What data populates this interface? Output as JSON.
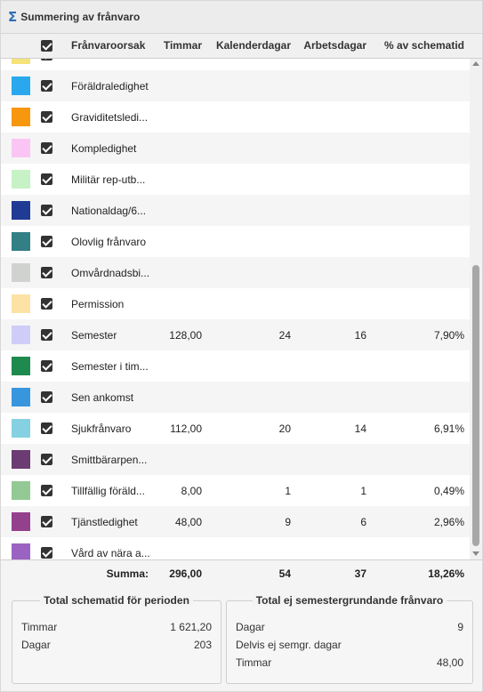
{
  "title": "Summering av frånvaro",
  "icons": {
    "title": "sigma-icon"
  },
  "header": {
    "reason": "Frånvaroorsak",
    "hours": "Timmar",
    "calendar_days": "Kalenderdagar",
    "work_days": "Arbetsdagar",
    "pct_schedule": "% av schematid"
  },
  "rows": [
    {
      "name": "",
      "color": "#f5e27a",
      "hours": "",
      "cal": "",
      "work": "",
      "pct": ""
    },
    {
      "name": "Föräldraledighet",
      "color": "#29a8ee",
      "hours": "",
      "cal": "",
      "work": "",
      "pct": ""
    },
    {
      "name": "Graviditetsledi...",
      "color": "#f7960f",
      "hours": "",
      "cal": "",
      "work": "",
      "pct": ""
    },
    {
      "name": "Kompledighet",
      "color": "#fac5f5",
      "hours": "",
      "cal": "",
      "work": "",
      "pct": ""
    },
    {
      "name": "Militär rep-utb...",
      "color": "#c6f2c6",
      "hours": "",
      "cal": "",
      "work": "",
      "pct": ""
    },
    {
      "name": "Nationaldag/6...",
      "color": "#1f3b94",
      "hours": "",
      "cal": "",
      "work": "",
      "pct": ""
    },
    {
      "name": "Olovlig frånvaro",
      "color": "#337f86",
      "hours": "",
      "cal": "",
      "work": "",
      "pct": ""
    },
    {
      "name": "Omvårdnadsbi...",
      "color": "#d0d2d0",
      "hours": "",
      "cal": "",
      "work": "",
      "pct": ""
    },
    {
      "name": "Permission",
      "color": "#fde2a6",
      "hours": "",
      "cal": "",
      "work": "",
      "pct": ""
    },
    {
      "name": "Semester",
      "color": "#cfcdf8",
      "hours": "128,00",
      "cal": "24",
      "work": "16",
      "pct": "7,90%"
    },
    {
      "name": "Semester i tim...",
      "color": "#1f8a4e",
      "hours": "",
      "cal": "",
      "work": "",
      "pct": ""
    },
    {
      "name": "Sen ankomst",
      "color": "#3897dc",
      "hours": "",
      "cal": "",
      "work": "",
      "pct": ""
    },
    {
      "name": "Sjukfrånvaro",
      "color": "#85d1e1",
      "hours": "112,00",
      "cal": "20",
      "work": "14",
      "pct": "6,91%"
    },
    {
      "name": "Smittbärarpen...",
      "color": "#6b3c72",
      "hours": "",
      "cal": "",
      "work": "",
      "pct": ""
    },
    {
      "name": "Tillfällig föräld...",
      "color": "#93c994",
      "hours": "8,00",
      "cal": "1",
      "work": "1",
      "pct": "0,49%"
    },
    {
      "name": "Tjänstledighet",
      "color": "#93418d",
      "hours": "48,00",
      "cal": "9",
      "work": "6",
      "pct": "2,96%"
    },
    {
      "name": "Vård av nära a...",
      "color": "#9b63c1",
      "hours": "",
      "cal": "",
      "work": "",
      "pct": ""
    }
  ],
  "summary": {
    "label": "Summa:",
    "hours": "296,00",
    "cal": "54",
    "work": "37",
    "pct": "18,26%"
  },
  "box_left": {
    "title": "Total schematid för perioden",
    "lines": [
      {
        "label": "Timmar",
        "value": "1 621,20"
      },
      {
        "label": "Dagar",
        "value": "203"
      }
    ]
  },
  "box_right": {
    "title": "Total ej semestergrundande frånvaro",
    "lines": [
      {
        "label": "Dagar",
        "value": "9"
      },
      {
        "label": "Delvis ej semgr. dagar",
        "value": ""
      },
      {
        "label": "Timmar",
        "value": "48,00"
      }
    ]
  }
}
